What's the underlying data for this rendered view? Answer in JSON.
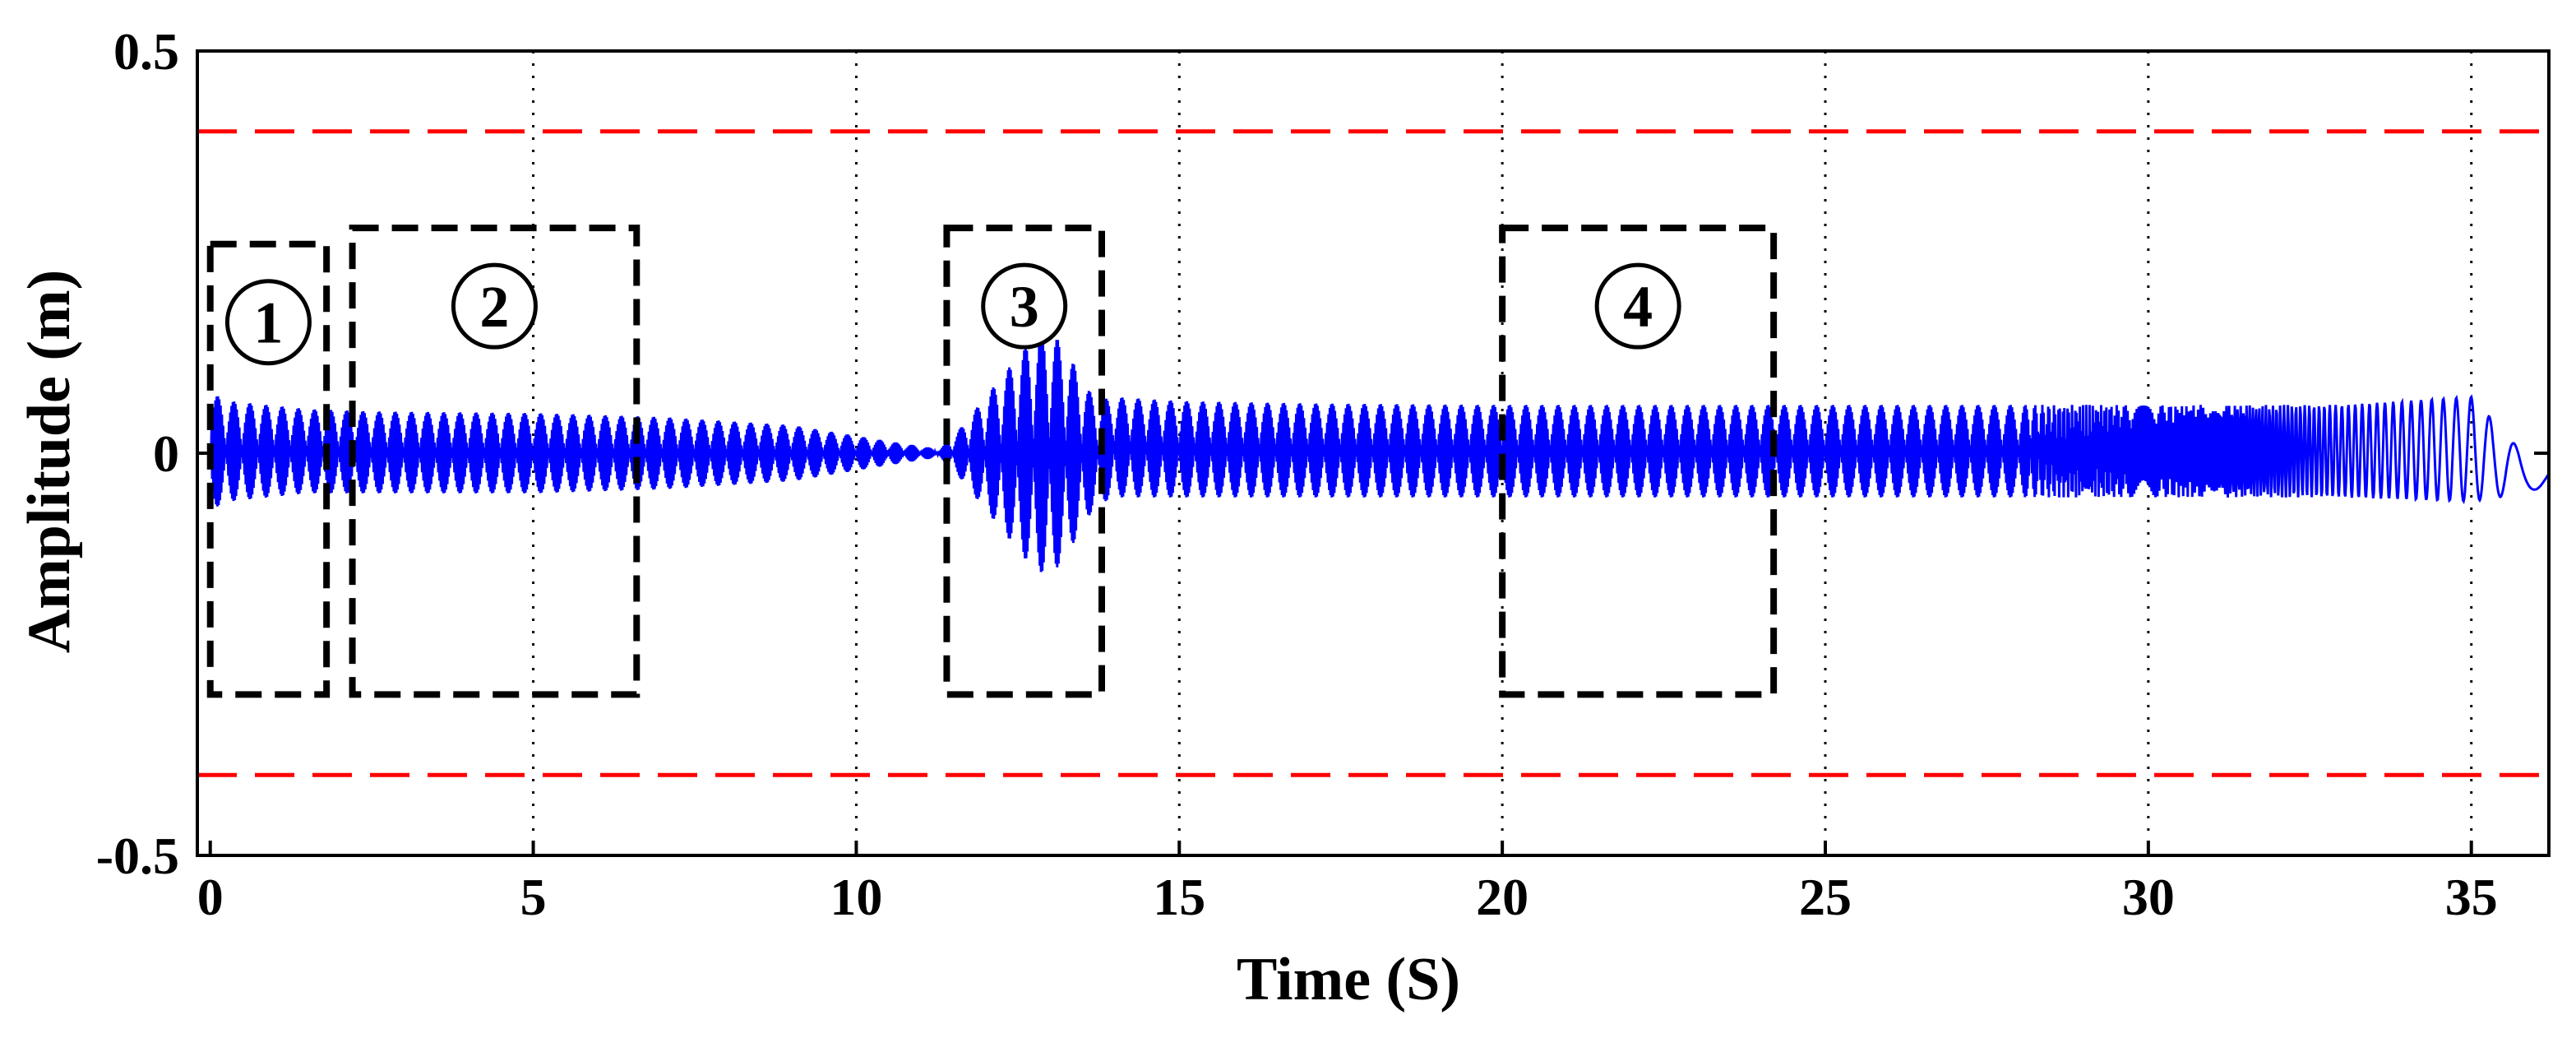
{
  "chart_data": {
    "type": "line",
    "title": "",
    "xlabel": "Time (S)",
    "ylabel": "Amplitude (m)",
    "xlim": [
      -0.2,
      36.2
    ],
    "ylim": [
      -0.5,
      0.5
    ],
    "x_ticks": [
      0,
      5,
      10,
      15,
      20,
      25,
      30,
      35
    ],
    "x_tick_labels": [
      "0",
      "5",
      "10",
      "15",
      "20",
      "25",
      "30",
      "35"
    ],
    "y_ticks": [
      -0.5,
      0,
      0.5
    ],
    "y_tick_labels": [
      "-0.5",
      "0",
      "0.5"
    ],
    "grid": "vertical dotted",
    "line_color": "#0000ff",
    "threshold_color": "#ff0000",
    "thresholds": [
      0.4,
      -0.4
    ],
    "envelope": {
      "x": [
        0,
        0.3,
        1.5,
        2.5,
        5,
        7,
        9,
        10.5,
        11.3,
        11.6,
        12.2,
        12.7,
        13.0,
        13.3,
        13.7,
        14.0,
        15,
        17,
        20,
        25,
        30,
        33,
        35.0,
        35.8,
        36.2
      ],
      "upper": [
        0.075,
        0.065,
        0.055,
        0.052,
        0.05,
        0.045,
        0.035,
        0.015,
        0.005,
        0.03,
        0.09,
        0.14,
        0.155,
        0.12,
        0.065,
        0.07,
        0.065,
        0.062,
        0.06,
        0.06,
        0.06,
        0.06,
        0.07,
        0.0,
        -0.01
      ],
      "lower": [
        -0.07,
        -0.06,
        -0.05,
        -0.05,
        -0.05,
        -0.045,
        -0.035,
        -0.015,
        -0.005,
        -0.03,
        -0.09,
        -0.14,
        -0.155,
        -0.12,
        -0.065,
        -0.055,
        -0.055,
        -0.055,
        -0.055,
        -0.055,
        -0.055,
        -0.055,
        -0.06,
        -0.05,
        -0.04
      ]
    },
    "regions": [
      {
        "label": "1",
        "x0": 0,
        "x1": 1.8,
        "y0": -0.3,
        "y1": 0.26
      },
      {
        "label": "2",
        "x0": 2.2,
        "x1": 6.6,
        "y0": -0.3,
        "y1": 0.28
      },
      {
        "label": "3",
        "x0": 11.4,
        "x1": 13.8,
        "y0": -0.3,
        "y1": 0.28
      },
      {
        "label": "4",
        "x0": 20.0,
        "x1": 24.2,
        "y0": -0.3,
        "y1": 0.28
      }
    ]
  }
}
